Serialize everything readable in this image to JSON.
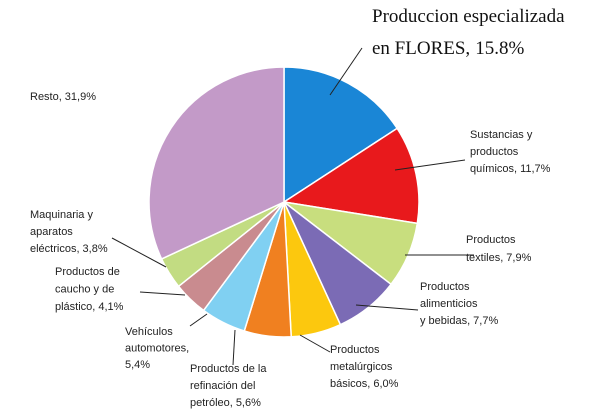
{
  "chart_data": {
    "type": "pie",
    "categories": [
      "Produccion especializada en FLORES,",
      "Sustancias y productos químicos,",
      "Productos textiles,",
      "Productos alimenticios y bebidas,",
      "Productos metalúrgicos básicos,",
      "Productos de la refinación del petróleo,",
      "Vehículos automotores,",
      "Productos de caucho y de plástico,",
      "Maquinaria y aparatos eléctricos,",
      "Resto,"
    ],
    "values": [
      15.8,
      11.7,
      7.9,
      7.7,
      6.0,
      5.6,
      5.4,
      4.1,
      3.8,
      31.9
    ],
    "value_labels": [
      "15.8%",
      "11,7%",
      "7,9%",
      "7,7%",
      "6,0%",
      "5,6%",
      "5,4%",
      "4,1%",
      "3,8%",
      "31,9%"
    ],
    "colors": [
      "#1a86d6",
      "#e8191c",
      "#c8de7e",
      "#7b6bb5",
      "#fcc80e",
      "#f08020",
      "#80d0f2",
      "#c98b8f",
      "#c2dc82",
      "#c39ac8"
    ]
  }
}
